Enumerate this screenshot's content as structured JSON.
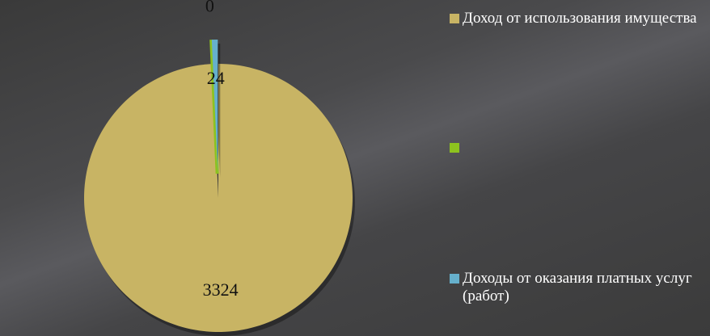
{
  "chart_data": {
    "type": "pie",
    "categories": [
      "Доход от использования имущества",
      null,
      "Доходы от оказания платных услуг (работ)"
    ],
    "values": [
      3324,
      0,
      24
    ],
    "colors": [
      "#c8b464",
      "#8dc21f",
      "#66b0cc"
    ],
    "legend": "right"
  }
}
